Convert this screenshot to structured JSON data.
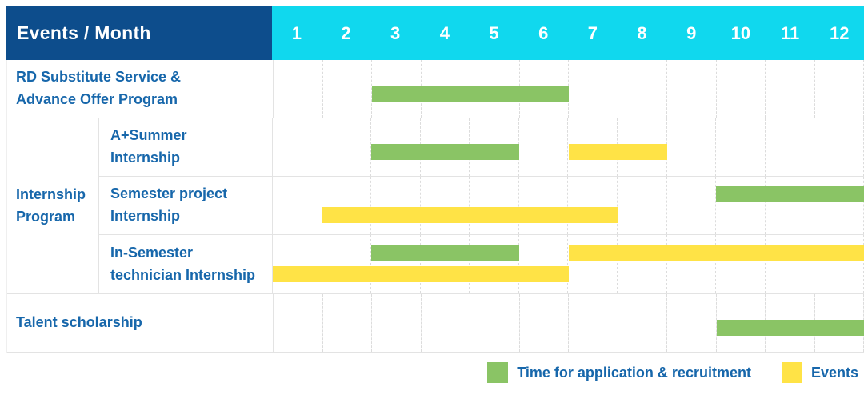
{
  "header": {
    "title": "Events / Month"
  },
  "months": [
    "1",
    "2",
    "3",
    "4",
    "5",
    "6",
    "7",
    "8",
    "9",
    "10",
    "11",
    "12"
  ],
  "colors": {
    "headerBg": "#0d4d8c",
    "monthHeaderBg": "#10d8ee",
    "application": "#8ac465",
    "event": "#ffe346",
    "text": "#1767ab",
    "grid": "#e3e3e3"
  },
  "legend": {
    "application": "Time for application & recruitment",
    "events": "Events"
  },
  "chart_data": {
    "type": "bar",
    "subtype": "gantt-schedule",
    "title": "Events / Month",
    "x_unit": "month",
    "x_range": [
      1,
      12
    ],
    "grid": true,
    "legend_position": "bottom-right",
    "legend_entries": [
      {
        "label": "Time for application & recruitment",
        "color_key": "application",
        "color": "#8ac465"
      },
      {
        "label": "Events",
        "color_key": "event",
        "color": "#ffe346"
      }
    ],
    "rows": [
      {
        "kind": "single",
        "label": "RD Substitute Service &\nAdvance Offer Program",
        "lines": [
          [
            {
              "type": "application",
              "start": 3,
              "end": 6
            }
          ]
        ]
      },
      {
        "kind": "group",
        "group_label": "Internship\nProgram",
        "children": [
          {
            "label": "A+Summer\nInternship",
            "lines": [
              [
                {
                  "type": "application",
                  "start": 3,
                  "end": 5
                },
                {
                  "type": "event",
                  "start": 7,
                  "end": 8
                }
              ]
            ]
          },
          {
            "label": "Semester project\nInternship",
            "lines": [
              [
                {
                  "type": "application",
                  "start": 10,
                  "end": 12
                }
              ],
              [
                {
                  "type": "event",
                  "start": 2,
                  "end": 7
                }
              ]
            ]
          },
          {
            "label": "In-Semester\ntechnician Internship",
            "lines": [
              [
                {
                  "type": "application",
                  "start": 3,
                  "end": 5
                },
                {
                  "type": "event",
                  "start": 7,
                  "end": 12
                }
              ],
              [
                {
                  "type": "event",
                  "start": 1,
                  "end": 6
                }
              ]
            ]
          }
        ]
      },
      {
        "kind": "single",
        "label": "Talent scholarship",
        "lines": [
          [
            {
              "type": "application",
              "start": 10,
              "end": 12
            }
          ]
        ]
      }
    ]
  }
}
